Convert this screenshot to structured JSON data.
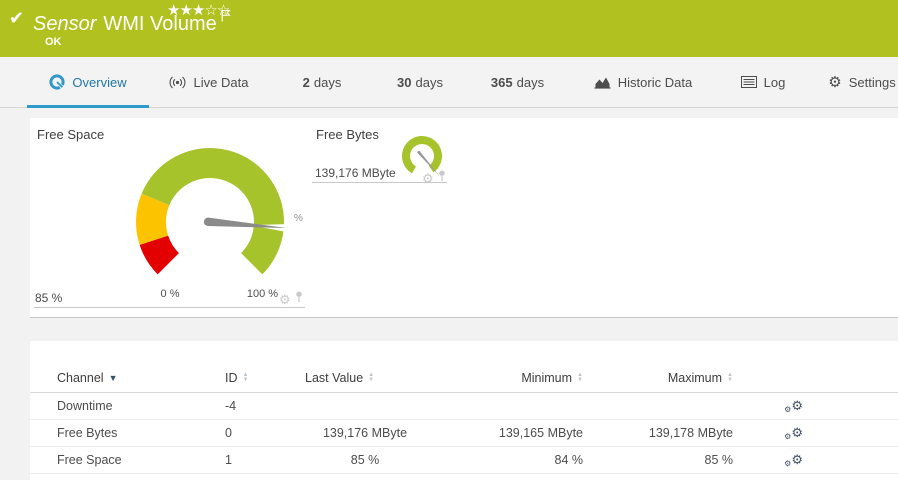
{
  "header": {
    "title_prefix": "Sensor",
    "title": "WMI Volume",
    "status": "OK",
    "rating": {
      "filled": 3,
      "total": 5
    },
    "colors": {
      "bar_bg": "#b1c120",
      "accent_blue": "#2e9ac9"
    }
  },
  "tabs": [
    {
      "id": "overview",
      "label": "Overview",
      "icon": "gauge-icon",
      "active": true
    },
    {
      "id": "live-data",
      "label": "Live Data",
      "icon": "live-icon",
      "active": false
    },
    {
      "id": "2-days",
      "num": "2",
      "label": "days",
      "active": false
    },
    {
      "id": "30-days",
      "num": "30",
      "label": "days",
      "active": false
    },
    {
      "id": "365-days",
      "num": "365",
      "label": "days",
      "active": false
    },
    {
      "id": "historic-data",
      "label": "Historic Data",
      "icon": "chart-icon",
      "active": false
    },
    {
      "id": "log",
      "label": "Log",
      "icon": "log-icon",
      "active": false
    },
    {
      "id": "settings",
      "label": "Settings",
      "icon": "gear-icon",
      "active": false
    }
  ],
  "chart_data": [
    {
      "type": "gauge",
      "title": "Free Space",
      "value": 85,
      "unit": "%",
      "min": 0,
      "max": 100,
      "value_label": "85 %",
      "tick_labels": [
        "0 %",
        "100 %"
      ],
      "zones": [
        {
          "from": 0,
          "to": 10,
          "color": "#e30000"
        },
        {
          "from": 10,
          "to": 25,
          "color": "#fcc400"
        },
        {
          "from": 25,
          "to": 100,
          "color": "#a7c32b"
        }
      ],
      "needle_color": "#8a8a8a"
    },
    {
      "type": "gauge",
      "title": "Free Bytes",
      "value": 139176,
      "unit": "MByte",
      "value_label": "139,176 MByte",
      "min": 0,
      "max": 100,
      "needle_pct": 98,
      "zones": [
        {
          "from": 0,
          "to": 100,
          "color": "#a7c32b"
        }
      ],
      "needle_color": "#999999"
    }
  ],
  "table": {
    "columns": [
      {
        "key": "channel",
        "label": "Channel",
        "sort": "desc"
      },
      {
        "key": "id",
        "label": "ID",
        "sort": "none"
      },
      {
        "key": "last_value",
        "label": "Last Value",
        "sort": "none"
      },
      {
        "key": "minimum",
        "label": "Minimum",
        "sort": "none"
      },
      {
        "key": "maximum",
        "label": "Maximum",
        "sort": "none"
      }
    ],
    "rows": [
      {
        "channel": "Downtime",
        "id": "-4",
        "last_value": "",
        "minimum": "",
        "maximum": ""
      },
      {
        "channel": "Free Bytes",
        "id": "0",
        "last_value": "139,176 MByte",
        "minimum": "139,165 MByte",
        "maximum": "139,178 MByte"
      },
      {
        "channel": "Free Space",
        "id": "1",
        "last_value": "85 %",
        "minimum": "84 %",
        "maximum": "85 %"
      }
    ]
  }
}
